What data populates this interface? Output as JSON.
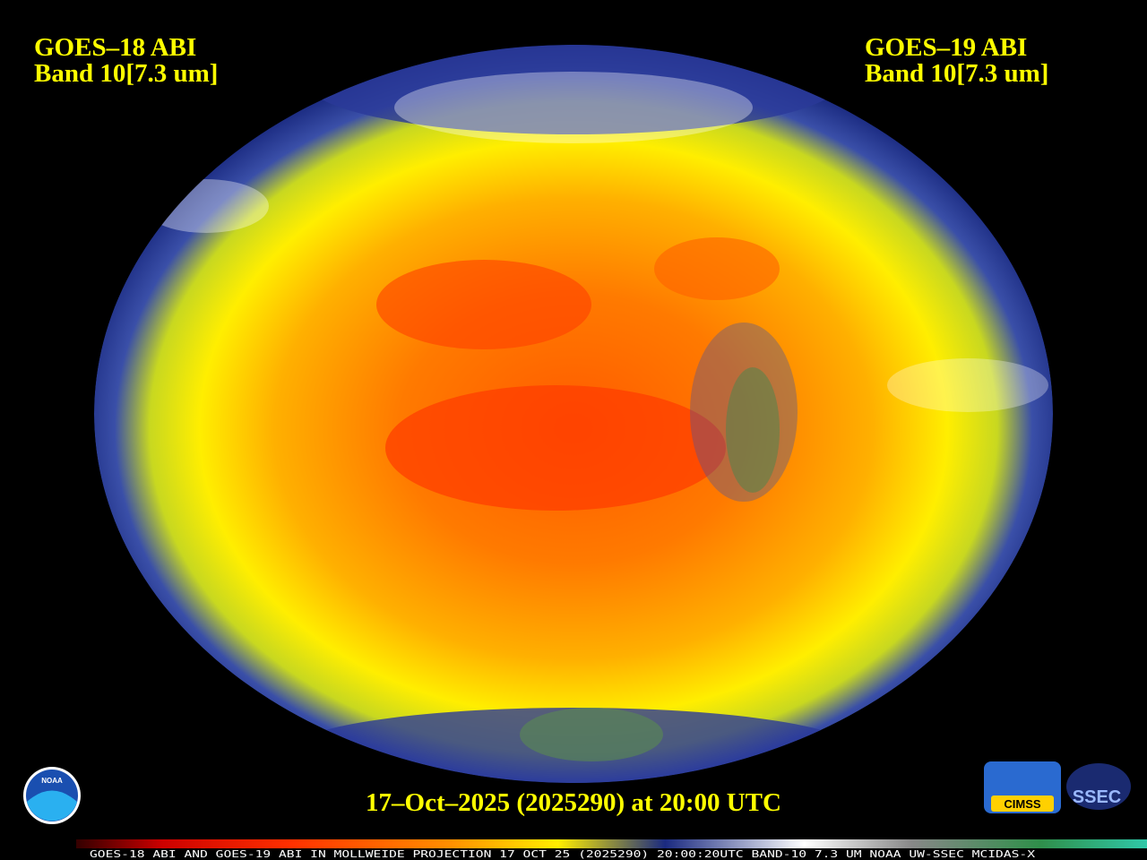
{
  "header": {
    "left": {
      "satellite": "GOES–18 ABI",
      "band": "Band 10[7.3 um]"
    },
    "right": {
      "satellite": "GOES–19 ABI",
      "band": "Band 10[7.3 um]"
    }
  },
  "timestamp": "17–Oct–2025 (2025290) at 20:00 UTC",
  "footer": "GOES-18 ABI AND GOES-19 ABI IN MOLLWEIDE PROJECTION 17 OCT 25 (2025290) 20:00:20UTC BAND-10 7.3 UM NOAA UW-SSEC MCIDAS-X",
  "logos": {
    "noaa": "NOAA",
    "cimss": "CIMSS",
    "ssec": "SSEC"
  }
}
